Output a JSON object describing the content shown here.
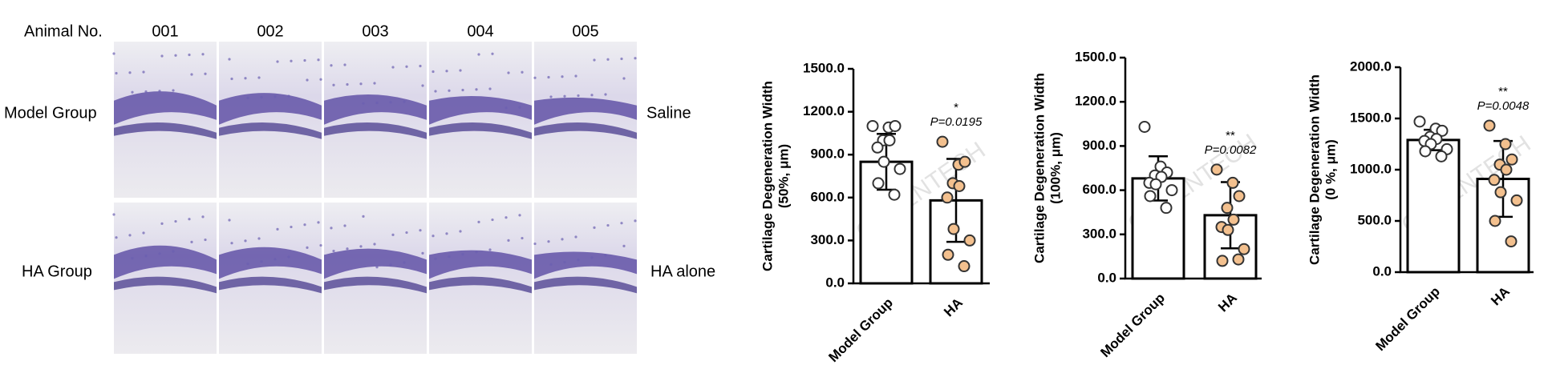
{
  "panel": {
    "header": "Animal No.",
    "animals": [
      "001",
      "002",
      "003",
      "004",
      "005"
    ],
    "row_labels": [
      "Model Group",
      "HA Group"
    ],
    "right_labels": [
      "Saline",
      "HA alone"
    ]
  },
  "watermark": "GREENTECH",
  "chart_data": [
    {
      "type": "bar",
      "ylabel": "Cartilage Degeneration Width",
      "ylabel_unit": "(50%, μm)",
      "categories": [
        "Model Group",
        "HA"
      ],
      "values": [
        850,
        580
      ],
      "errors": [
        195,
        290
      ],
      "bar_color": "#ffffff",
      "points": [
        [
          1100,
          1090,
          1100,
          1000,
          1000,
          950,
          850,
          800,
          700,
          620
        ],
        [
          990,
          830,
          850,
          700,
          680,
          600,
          380,
          300,
          200,
          120
        ]
      ],
      "point_colors": [
        "#ffffff",
        "#f3c08e"
      ],
      "significance": "*",
      "p_label": "P=0.0195",
      "ylim": [
        0,
        1500
      ],
      "yticks": [
        {
          "value": 0,
          "label": "0.0"
        },
        {
          "value": 300,
          "label": "300.0"
        },
        {
          "value": 600,
          "label": "600.0"
        },
        {
          "value": 900,
          "label": "900.0"
        },
        {
          "value": 1200,
          "label": "1200.0"
        },
        {
          "value": 1500,
          "label": "1500.0"
        }
      ]
    },
    {
      "type": "bar",
      "ylabel": "Cartilage Degeneration Width",
      "ylabel_unit": "(100%, μm)",
      "categories": [
        "Model Group",
        "HA"
      ],
      "values": [
        680,
        430
      ],
      "errors": [
        150,
        225
      ],
      "bar_color": "#ffffff",
      "points": [
        [
          1030,
          760,
          720,
          700,
          690,
          650,
          640,
          600,
          560,
          480
        ],
        [
          740,
          650,
          560,
          480,
          400,
          350,
          330,
          200,
          120,
          130
        ]
      ],
      "point_colors": [
        "#ffffff",
        "#f3c08e"
      ],
      "significance": "**",
      "p_label": "P=0.0082",
      "ylim": [
        0,
        1500
      ],
      "yticks": [
        {
          "value": 0,
          "label": "0.0"
        },
        {
          "value": 300,
          "label": "300.0"
        },
        {
          "value": 600,
          "label": "600.0"
        },
        {
          "value": 900,
          "label": "900.0"
        },
        {
          "value": 1200,
          "label": "1200.0"
        },
        {
          "value": 1500,
          "label": "1500.0"
        }
      ]
    },
    {
      "type": "bar",
      "ylabel": "Cartilage Degeneration Width",
      "ylabel_unit": "(0 %, μm)",
      "categories": [
        "Model Group",
        "HA"
      ],
      "values": [
        1290,
        910
      ],
      "errors": [
        100,
        370
      ],
      "bar_color": "#ffffff",
      "points": [
        [
          1470,
          1400,
          1380,
          1320,
          1300,
          1280,
          1250,
          1200,
          1180,
          1130
        ],
        [
          1430,
          1250,
          1100,
          1050,
          1000,
          900,
          780,
          700,
          500,
          300
        ]
      ],
      "point_colors": [
        "#ffffff",
        "#f3c08e"
      ],
      "significance": "**",
      "p_label": "P=0.0048",
      "ylim": [
        0,
        2000
      ],
      "yticks": [
        {
          "value": 0,
          "label": "0.0"
        },
        {
          "value": 500,
          "label": "500.0"
        },
        {
          "value": 1000,
          "label": "1000.0"
        },
        {
          "value": 1500,
          "label": "1500.0"
        },
        {
          "value": 2000,
          "label": "2000.0"
        }
      ]
    }
  ]
}
